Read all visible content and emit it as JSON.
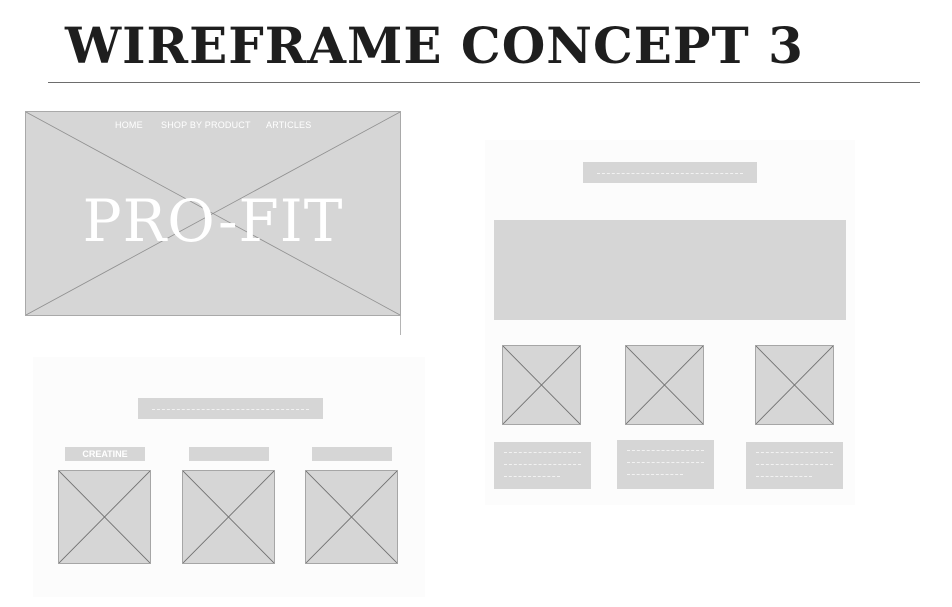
{
  "page": {
    "title": "WIREFRAME CONCEPT 3"
  },
  "hero": {
    "nav": [
      "HOME",
      "SHOP BY PRODUCT",
      "ARTICLES"
    ],
    "brand": "PRO-FIT"
  },
  "left_section": {
    "category_labels": [
      "CREATINE",
      "",
      ""
    ]
  },
  "colors": {
    "placeholder_fill": "#d6d6d6",
    "title_text": "#1e1e1e",
    "white_text": "#ffffff"
  }
}
